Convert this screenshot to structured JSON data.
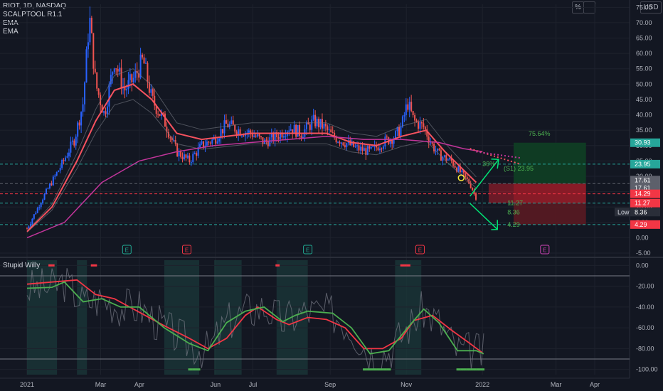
{
  "legend": {
    "symbol": "RIOT, 1D, NASDAQ",
    "indicators": [
      "SCALPTOOL R1.1",
      "EMA",
      "EMA"
    ]
  },
  "top_buttons": {
    "percent": "%",
    "currency": "USD"
  },
  "oscillator": {
    "title": "Stupid Willy"
  },
  "chart_data": [
    {
      "type": "candlestick",
      "symbol": "RIOT",
      "interval": "1D",
      "exchange": "NASDAQ",
      "ylim": [
        -5,
        76
      ],
      "y_ticks": [
        "75.00",
        "70.00",
        "65.00",
        "60.00",
        "55.00",
        "50.00",
        "45.00",
        "40.00",
        "35.00",
        "30.00",
        "25.00",
        "20.00",
        "15.00",
        "10.00",
        "5.00",
        "0.00",
        "-5.00"
      ],
      "x_ticks": [
        "2021",
        "Mar",
        "Apr",
        "Jun",
        "Jul",
        "Sep",
        "Nov",
        "2022",
        "Mar",
        "Apr"
      ],
      "x_tick_days": [
        0,
        59,
        90,
        151,
        181,
        243,
        304,
        365,
        424,
        455
      ],
      "close_series": [
        [
          0,
          3
        ],
        [
          14,
          14
        ],
        [
          28,
          24
        ],
        [
          38,
          32
        ],
        [
          45,
          44
        ],
        [
          50,
          72
        ],
        [
          55,
          50
        ],
        [
          62,
          40
        ],
        [
          70,
          58
        ],
        [
          78,
          48
        ],
        [
          86,
          52
        ],
        [
          93,
          58
        ],
        [
          100,
          45
        ],
        [
          110,
          38
        ],
        [
          120,
          28
        ],
        [
          130,
          25
        ],
        [
          140,
          30
        ],
        [
          150,
          32
        ],
        [
          160,
          37
        ],
        [
          170,
          35
        ],
        [
          180,
          34
        ],
        [
          190,
          31
        ],
        [
          200,
          33
        ],
        [
          210,
          36
        ],
        [
          220,
          34
        ],
        [
          230,
          38
        ],
        [
          238,
          36
        ],
        [
          245,
          33
        ],
        [
          255,
          31
        ],
        [
          265,
          29
        ],
        [
          275,
          28
        ],
        [
          285,
          31
        ],
        [
          295,
          33
        ],
        [
          300,
          36
        ],
        [
          305,
          44
        ],
        [
          310,
          38
        ],
        [
          318,
          36
        ],
        [
          325,
          30
        ],
        [
          330,
          27
        ],
        [
          340,
          25
        ],
        [
          350,
          20
        ],
        [
          355,
          17.6
        ],
        [
          360,
          13
        ]
      ],
      "ema_fast": [
        [
          0,
          2
        ],
        [
          20,
          10
        ],
        [
          40,
          25
        ],
        [
          55,
          38
        ],
        [
          70,
          48
        ],
        [
          85,
          50
        ],
        [
          100,
          45
        ],
        [
          120,
          34
        ],
        [
          140,
          32
        ],
        [
          160,
          33
        ],
        [
          180,
          34
        ],
        [
          200,
          34
        ],
        [
          220,
          34
        ],
        [
          240,
          34
        ],
        [
          260,
          31
        ],
        [
          280,
          30
        ],
        [
          300,
          33
        ],
        [
          320,
          35
        ],
        [
          335,
          28
        ],
        [
          350,
          22
        ],
        [
          360,
          18
        ]
      ],
      "ema_slow": [
        [
          0,
          0
        ],
        [
          30,
          5
        ],
        [
          60,
          18
        ],
        [
          90,
          25
        ],
        [
          120,
          28
        ],
        [
          150,
          30
        ],
        [
          180,
          31
        ],
        [
          210,
          32
        ],
        [
          240,
          33
        ],
        [
          270,
          32
        ],
        [
          300,
          32
        ],
        [
          330,
          31
        ],
        [
          350,
          29
        ],
        [
          365,
          28
        ]
      ],
      "projection": [
        [
          360,
          28
        ],
        [
          395,
          25
        ]
      ],
      "levels": [
        {
          "label": "30.93",
          "value": 30.93,
          "color": "#26a69a"
        },
        {
          "label": "23.95",
          "value": 23.95,
          "color": "#26a69a"
        },
        {
          "label": "17.61",
          "value": 17.61,
          "color": "#5d606b"
        },
        {
          "label": "17.61",
          "value": 17.61,
          "color": "#5d606b"
        },
        {
          "label": "14.29",
          "value": 14.29,
          "color": "#f23645"
        },
        {
          "label": "11.27",
          "value": 11.27,
          "color": "#f23645"
        },
        {
          "label": "8.36",
          "value": 8.36,
          "color": "#2a2e39"
        },
        {
          "label": "4.29",
          "value": 4.29,
          "color": "#f23645"
        }
      ],
      "low_badge": "Low",
      "annotations": {
        "target_percent": "75.64%",
        "arrow_percent": "36%",
        "s1_label": "(S1) 23.95",
        "down_targets": [
          "11.27",
          "8.36",
          "4.29"
        ]
      },
      "earnings_markers": [
        {
          "label": "E",
          "day": 80,
          "color": "#22ab94"
        },
        {
          "label": "E",
          "day": 128,
          "color": "#f23645"
        },
        {
          "label": "E",
          "day": 225,
          "color": "#22ab94"
        },
        {
          "label": "E",
          "day": 315,
          "color": "#f23645"
        },
        {
          "label": "E",
          "day": 415,
          "color": "#d046b8"
        }
      ]
    },
    {
      "type": "line",
      "title": "Stupid Willy",
      "ylim": [
        -105,
        5
      ],
      "y_ticks": [
        "0.00",
        "-20.00",
        "-40.00",
        "-60.00",
        "-80.00",
        "-100.00"
      ],
      "series": [
        {
          "color": "#f23645",
          "values": [
            [
              0,
              -18
            ],
            [
              20,
              -16
            ],
            [
              40,
              -14
            ],
            [
              55,
              -28
            ],
            [
              70,
              -32
            ],
            [
              90,
              -45
            ],
            [
              110,
              -58
            ],
            [
              130,
              -70
            ],
            [
              145,
              -80
            ],
            [
              160,
              -70
            ],
            [
              175,
              -48
            ],
            [
              185,
              -40
            ],
            [
              200,
              -52
            ],
            [
              210,
              -57
            ],
            [
              225,
              -50
            ],
            [
              240,
              -52
            ],
            [
              255,
              -60
            ],
            [
              270,
              -80
            ],
            [
              285,
              -80
            ],
            [
              300,
              -70
            ],
            [
              310,
              -53
            ],
            [
              325,
              -48
            ],
            [
              340,
              -62
            ],
            [
              355,
              -75
            ],
            [
              365,
              -84
            ]
          ]
        },
        {
          "color": "#4caf50",
          "values": [
            [
              0,
              -22
            ],
            [
              20,
              -21
            ],
            [
              30,
              -16
            ],
            [
              45,
              -35
            ],
            [
              60,
              -32
            ],
            [
              75,
              -40
            ],
            [
              90,
              -40
            ],
            [
              110,
              -60
            ],
            [
              130,
              -75
            ],
            [
              145,
              -82
            ],
            [
              160,
              -55
            ],
            [
              175,
              -44
            ],
            [
              190,
              -40
            ],
            [
              205,
              -54
            ],
            [
              215,
              -48
            ],
            [
              225,
              -44
            ],
            [
              245,
              -46
            ],
            [
              260,
              -60
            ],
            [
              275,
              -85
            ],
            [
              290,
              -82
            ],
            [
              305,
              -60
            ],
            [
              318,
              -42
            ],
            [
              330,
              -55
            ],
            [
              345,
              -82
            ],
            [
              360,
              -82
            ],
            [
              366,
              -85
            ]
          ]
        }
      ],
      "shaded_ranges": [
        [
          0,
          24
        ],
        [
          40,
          48
        ],
        [
          110,
          138
        ],
        [
          150,
          172
        ],
        [
          200,
          225
        ],
        [
          295,
          316
        ]
      ]
    }
  ]
}
